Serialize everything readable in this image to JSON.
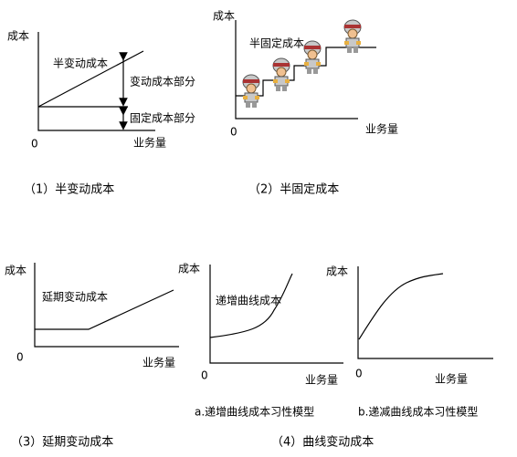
{
  "panel1": {
    "y_label": "成本",
    "origin": "0",
    "x_label": "业务量",
    "line_label": "半变动成本",
    "variable_part": "变动成本部分",
    "fixed_part": "固定成本部分",
    "caption": "（1）半变动成本"
  },
  "panel2": {
    "y_label": "成本",
    "origin": "0",
    "x_label": "业务量",
    "line_label": "半固定成本",
    "caption": "（2）半固定成本"
  },
  "panel3": {
    "y_label": "成本",
    "origin": "0",
    "x_label": "业务量",
    "line_label": "延期变动成本",
    "caption": "（3）延期变动成本"
  },
  "panel4a": {
    "y_label": "成本",
    "origin": "0",
    "x_label": "业务量",
    "line_label": "递增曲线成本",
    "caption": "a.递增曲线成本习性模型"
  },
  "panel4b": {
    "y_label": "成本",
    "origin": "0",
    "x_label": "业务量",
    "caption": "b.递减曲线成本习性模型"
  },
  "panel4_caption": "（4）曲线变动成本"
}
